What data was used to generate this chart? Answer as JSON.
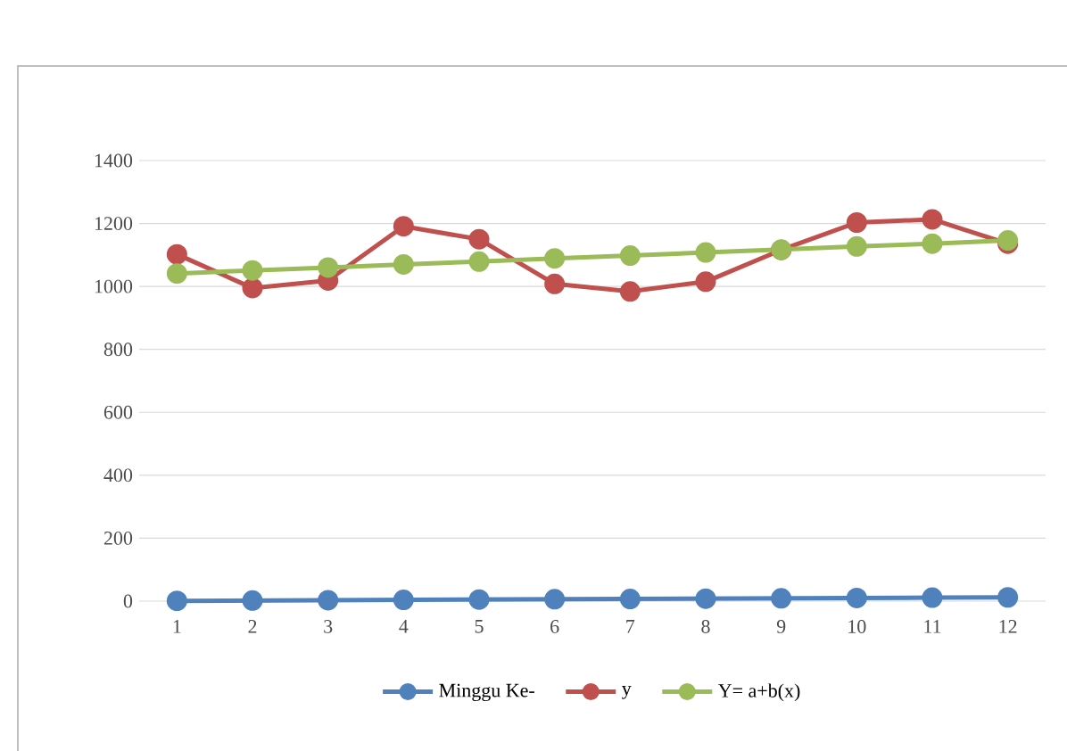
{
  "chart_data": {
    "type": "line",
    "categories": [
      "1",
      "2",
      "3",
      "4",
      "5",
      "6",
      "7",
      "8",
      "9",
      "10",
      "11",
      "12"
    ],
    "series": [
      {
        "name": "Minggu Ke-",
        "color": "#4f81bd",
        "values": [
          1,
          2,
          3,
          4,
          5,
          6,
          7,
          8,
          9,
          10,
          11,
          12
        ]
      },
      {
        "name": "y",
        "color": "#c0504d",
        "values": [
          1102,
          995,
          1019,
          1191,
          1150,
          1008,
          984,
          1015,
          1116,
          1203,
          1213,
          1136
        ]
      },
      {
        "name": "Y= a+b(x)",
        "color": "#9bbb59",
        "values": [
          1041,
          1051,
          1060,
          1070,
          1079,
          1089,
          1098,
          1108,
          1117,
          1127,
          1136,
          1146
        ]
      }
    ],
    "ylim": [
      0,
      1400
    ],
    "yticks": [
      0,
      200,
      400,
      600,
      800,
      1000,
      1200,
      1400
    ],
    "grid": "y",
    "legend": "bottom",
    "marker": "circle",
    "line_style": "solid"
  }
}
